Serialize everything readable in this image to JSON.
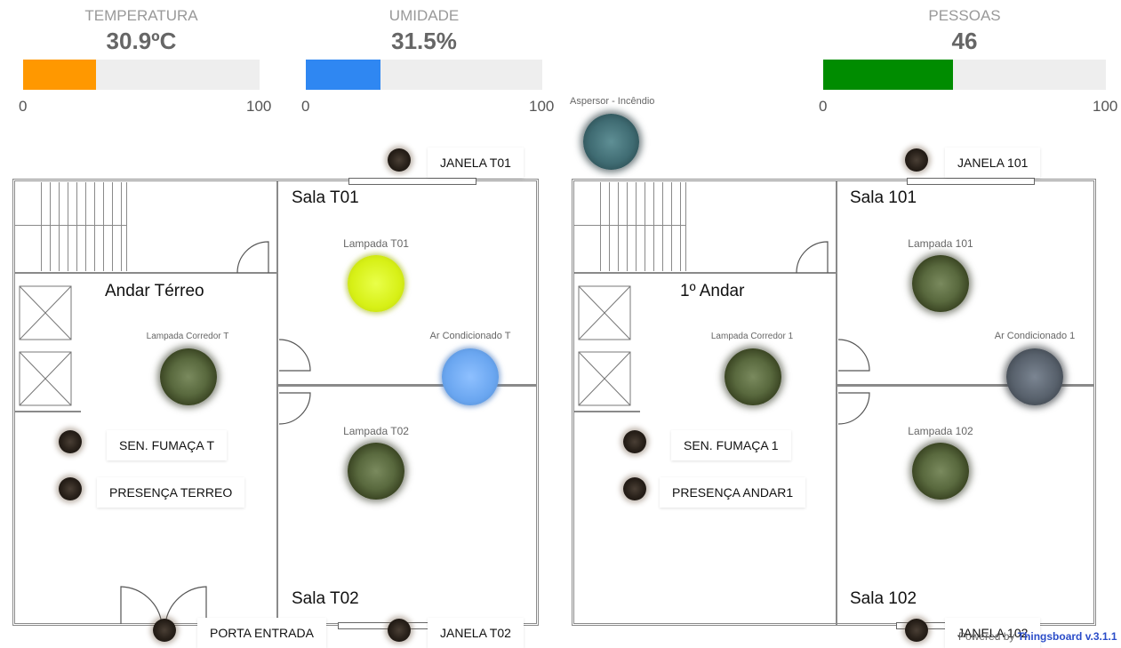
{
  "gauges": [
    {
      "title": "TEMPERATURA",
      "value": "30.9ºC",
      "min": "0",
      "max": "100",
      "fraction": 0.309,
      "color": "#ff9800"
    },
    {
      "title": "UMIDADE",
      "value": "31.5%",
      "min": "0",
      "max": "100",
      "fraction": 0.315,
      "color": "#2f87f2"
    },
    {
      "title": "PESSOAS",
      "value": "46",
      "min": "0",
      "max": "100",
      "fraction": 0.46,
      "color": "#008c00"
    }
  ],
  "sprinkler": {
    "label": "Aspersor - Incêndio",
    "state": "off"
  },
  "ground": {
    "floor_label": "Andar Térreo",
    "room1": "Sala T01",
    "room2": "Sala T02",
    "lamp_corridor": "Lampada Corredor T",
    "lamp_room1": "Lampada T01",
    "ac_label": "Ar Condicionado T",
    "lamp_room2": "Lampada T02",
    "smoke_sensor": "SEN. FUMAÇA T",
    "presence": "PRESENÇA TERREO",
    "window_top": "JANELA T01",
    "window_bottom": "JANELA T02",
    "door": "PORTA ENTRADA",
    "states": {
      "lamp_room1": "on",
      "ac": "on",
      "lamp_corridor": "off",
      "lamp_room2": "off"
    }
  },
  "first": {
    "floor_label": "1º Andar",
    "room1": "Sala 101",
    "room2": "Sala 102",
    "lamp_corridor": "Lampada Corredor 1",
    "lamp_room1": "Lampada 101",
    "ac_label": "Ar Condicionado 1",
    "lamp_room2": "Lampada 102",
    "smoke_sensor": "SEN. FUMAÇA 1",
    "presence": "PRESENÇA ANDAR1",
    "window_top": "JANELA 101",
    "window_bottom": "JANELA 102",
    "states": {
      "lamp_room1": "off",
      "ac": "off",
      "lamp_corridor": "off",
      "lamp_room2": "off"
    }
  },
  "footer": {
    "powered_prefix": "Powered by ",
    "powered_brand": "Thingsboard v.3.1.1"
  }
}
